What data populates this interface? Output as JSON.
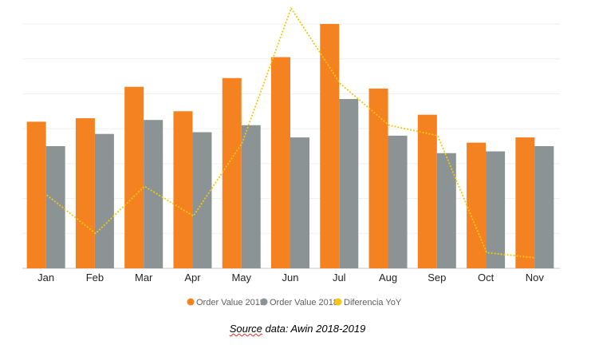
{
  "caption": {
    "source_word": "Source",
    "rest": " data: Awin 2018-2019"
  },
  "chart_data": {
    "type": "bar",
    "categories": [
      "Jan",
      "Feb",
      "Mar",
      "Apr",
      "May",
      "Jun",
      "Jul",
      "Aug",
      "Sep",
      "Oct",
      "Nov"
    ],
    "ylim": [
      0,
      7
    ],
    "grid": true,
    "legend_position": "bottom-center",
    "series": [
      {
        "name": "Order Value 2019",
        "kind": "bar",
        "color": "#f58220",
        "values": [
          4.2,
          4.3,
          5.2,
          4.5,
          5.45,
          6.05,
          7.0,
          5.15,
          4.4,
          3.6,
          3.75
        ]
      },
      {
        "name": "Order Value 2018",
        "kind": "bar",
        "color": "#8c9395",
        "values": [
          3.5,
          3.85,
          4.25,
          3.9,
          4.1,
          3.75,
          4.85,
          3.8,
          3.3,
          3.35,
          3.5
        ]
      },
      {
        "name": "Diferencia YoY",
        "kind": "line",
        "style": "dotted",
        "color": "#f2c811",
        "values": [
          2.1,
          1.0,
          2.35,
          1.5,
          3.6,
          7.45,
          5.3,
          4.1,
          3.8,
          0.45,
          0.3
        ]
      }
    ]
  }
}
